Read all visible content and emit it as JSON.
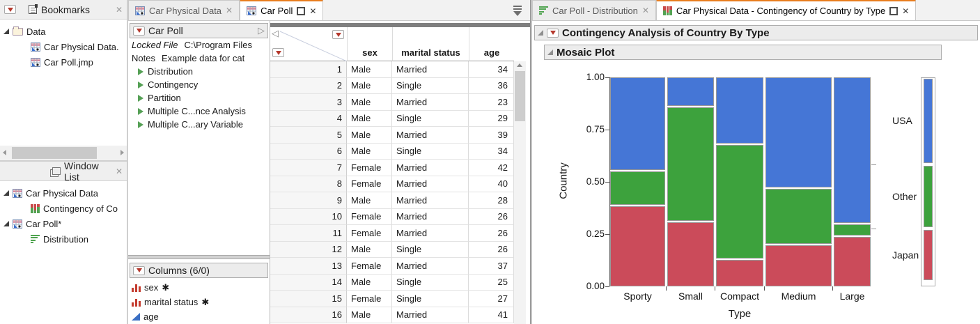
{
  "colors": {
    "usa": "#4576D6",
    "other": "#3DA23D",
    "japan": "#CB4B5A",
    "accent_tab": "#E87D1E"
  },
  "bookmarks_panel": {
    "title": "Bookmarks",
    "close": "✕",
    "folder": "Data",
    "files": [
      "Car Physical Data.",
      "Car Poll.jmp"
    ]
  },
  "window_list_panel": {
    "title": "Window List",
    "close": "✕",
    "items": [
      {
        "label": "Car Physical Data",
        "level": 1
      },
      {
        "label": "Contingency of Co",
        "level": 2
      },
      {
        "label": "Car Poll*",
        "level": 1
      },
      {
        "label": "Distribution",
        "level": 2
      }
    ]
  },
  "mid_tabs": {
    "tab1": "Car Physical Data",
    "tab2": "Car Poll",
    "close": "✕"
  },
  "table_panel": {
    "title": "Car Poll",
    "locked_label": "Locked File",
    "locked_value": "C:\\Program Files",
    "notes_label": "Notes",
    "notes_value": "Example data for cat",
    "scripts": [
      "Distribution",
      "Contingency",
      "Partition",
      "Multiple C...nce Analysis",
      "Multiple C...ary Variable"
    ],
    "columns_header": "Columns (6/0)",
    "columns": [
      {
        "name": "sex",
        "flag": "✱",
        "type": "nominal"
      },
      {
        "name": "marital status",
        "flag": "✱",
        "type": "nominal"
      },
      {
        "name": "age",
        "flag": "",
        "type": "continuous"
      }
    ]
  },
  "data_grid": {
    "headers": [
      "sex",
      "marital status",
      "age"
    ],
    "rows": [
      [
        1,
        "Male",
        "Married",
        34
      ],
      [
        2,
        "Male",
        "Single",
        36
      ],
      [
        3,
        "Male",
        "Married",
        23
      ],
      [
        4,
        "Male",
        "Single",
        29
      ],
      [
        5,
        "Male",
        "Married",
        39
      ],
      [
        6,
        "Male",
        "Single",
        34
      ],
      [
        7,
        "Female",
        "Married",
        42
      ],
      [
        8,
        "Female",
        "Married",
        40
      ],
      [
        9,
        "Male",
        "Married",
        28
      ],
      [
        10,
        "Female",
        "Married",
        26
      ],
      [
        11,
        "Female",
        "Married",
        26
      ],
      [
        12,
        "Male",
        "Single",
        26
      ],
      [
        13,
        "Female",
        "Married",
        37
      ],
      [
        14,
        "Male",
        "Single",
        25
      ],
      [
        15,
        "Female",
        "Single",
        27
      ],
      [
        16,
        "Male",
        "Married",
        41
      ]
    ]
  },
  "right_tabs": {
    "tab1": "Car Poll - Distribution",
    "tab2": "Car Physical Data - Contingency of Country by Type",
    "close": "✕"
  },
  "analysis": {
    "title": "Contingency Analysis of Country By Type",
    "subtitle": "Mosaic Plot"
  },
  "chart_data": {
    "type": "mosaic",
    "title": "Contingency Analysis of Country By Type",
    "xlabel": "Type",
    "ylabel": "Country",
    "ylim": [
      0,
      1
    ],
    "yticks": [
      "1.00",
      "0.75",
      "0.50",
      "0.25",
      "0.00"
    ],
    "categories": [
      "Sporty",
      "Small",
      "Compact",
      "Medium",
      "Large"
    ],
    "category_width_fractions": [
      0.218,
      0.185,
      0.188,
      0.262,
      0.146
    ],
    "series": [
      {
        "name": "Japan",
        "color_key": "japan",
        "values": [
          0.39,
          0.31,
          0.13,
          0.2,
          0.24
        ]
      },
      {
        "name": "Other",
        "color_key": "other",
        "values": [
          0.16,
          0.55,
          0.55,
          0.265,
          0.055
        ]
      },
      {
        "name": "USA",
        "color_key": "usa",
        "values": [
          0.45,
          0.14,
          0.32,
          0.535,
          0.705
        ]
      }
    ],
    "legend": [
      "USA",
      "Other",
      "Japan"
    ],
    "margin_totals": [
      {
        "name": "USA",
        "color_key": "usa",
        "value": 0.42
      },
      {
        "name": "Other",
        "color_key": "other",
        "value": 0.305
      },
      {
        "name": "Japan",
        "color_key": "japan",
        "value": 0.25
      }
    ]
  }
}
